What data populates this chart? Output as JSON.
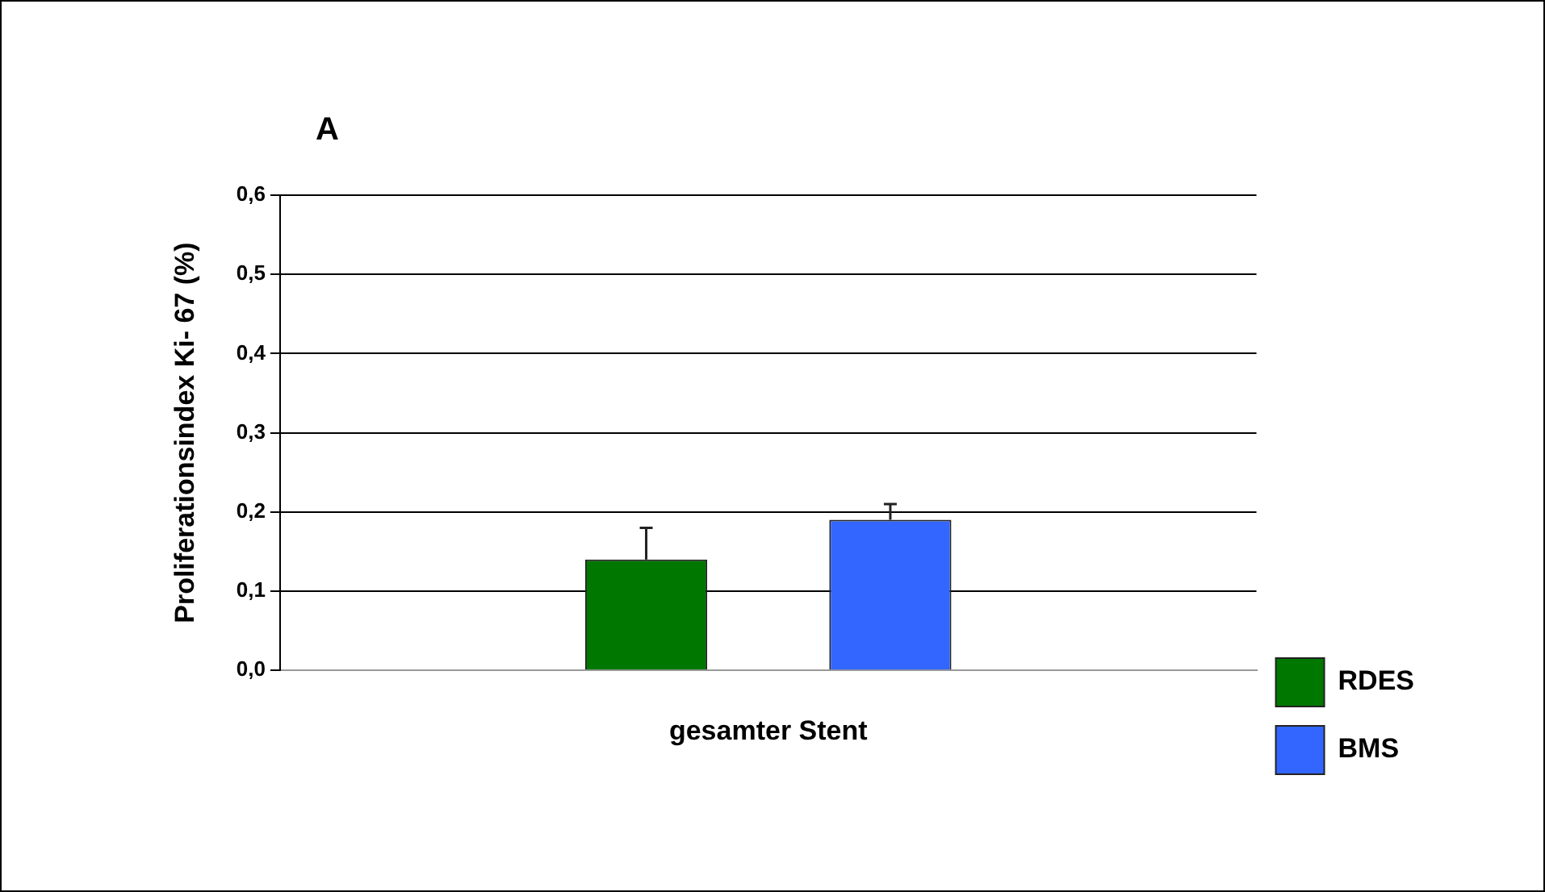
{
  "chart_data": {
    "type": "bar",
    "title": "A",
    "ylabel": "Proliferationsindex Ki- 67 (%)",
    "categories": [
      "gesamter Stent"
    ],
    "series": [
      {
        "name": "RDES",
        "color": "#007800",
        "values": [
          0.14
        ],
        "errors": [
          [
            0.14,
            0.18
          ]
        ]
      },
      {
        "name": "BMS",
        "color": "#3366ff",
        "values": [
          0.19
        ],
        "errors": [
          [
            0.19,
            0.21
          ]
        ]
      }
    ],
    "ylim": [
      0,
      0.6
    ],
    "yticks": [
      {
        "value": 0,
        "label": "0,0"
      },
      {
        "value": 0.1,
        "label": "0,1"
      },
      {
        "value": 0.2,
        "label": "0,2"
      },
      {
        "value": 0.3,
        "label": "0,3"
      },
      {
        "value": 0.4,
        "label": "0,4"
      },
      {
        "value": 0.5,
        "label": "0,5"
      },
      {
        "value": 0.6,
        "label": "0,6"
      }
    ],
    "grid": "y",
    "legend": "right"
  }
}
